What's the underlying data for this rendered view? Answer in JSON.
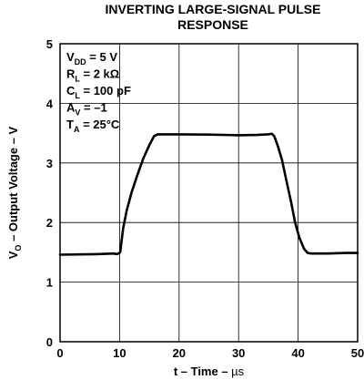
{
  "chart_data": {
    "type": "line",
    "title": [
      "INVERTING LARGE-SIGNAL PULSE",
      "RESPONSE"
    ],
    "xlabel": {
      "main": "t – Time – ",
      "unit": "µs"
    },
    "ylabel": {
      "sym": "V",
      "sub": "O",
      "rest": " – Output Voltage – V"
    },
    "xlim": [
      0,
      50
    ],
    "ylim": [
      0,
      5
    ],
    "xticks": [
      "0",
      "10",
      "20",
      "30",
      "40",
      "50"
    ],
    "yticks": [
      "0",
      "1",
      "2",
      "3",
      "4",
      "5"
    ],
    "grid": true,
    "conditions": [
      {
        "sym": "V",
        "sub": "DD",
        "rest": " = 5 V"
      },
      {
        "sym": "R",
        "sub": "L",
        "rest": " = 2 kΩ"
      },
      {
        "sym": "C",
        "sub": "L",
        "rest": " = 100 pF"
      },
      {
        "sym": "A",
        "sub": "V",
        "rest": " = –1"
      },
      {
        "sym": "T",
        "sub": "A",
        "rest": " = 25°C"
      }
    ],
    "series": [
      {
        "x": [
          0,
          3,
          6,
          9,
          9.6,
          10.1,
          10.6,
          11.2,
          12,
          13,
          14,
          15,
          15.8,
          16.4,
          17.5,
          20,
          25,
          30,
          33,
          35,
          35.6,
          36,
          36.6,
          37.3,
          38,
          38.8,
          39.5,
          40.2,
          41,
          41.6,
          42.2,
          45,
          48,
          50
        ],
        "y": [
          1.46,
          1.465,
          1.47,
          1.48,
          1.47,
          1.5,
          1.9,
          2.2,
          2.5,
          2.8,
          3.08,
          3.3,
          3.45,
          3.48,
          3.48,
          3.48,
          3.475,
          3.465,
          3.47,
          3.48,
          3.49,
          3.45,
          3.28,
          3.05,
          2.72,
          2.35,
          2.0,
          1.75,
          1.56,
          1.49,
          1.48,
          1.48,
          1.49,
          1.49
        ]
      }
    ]
  }
}
